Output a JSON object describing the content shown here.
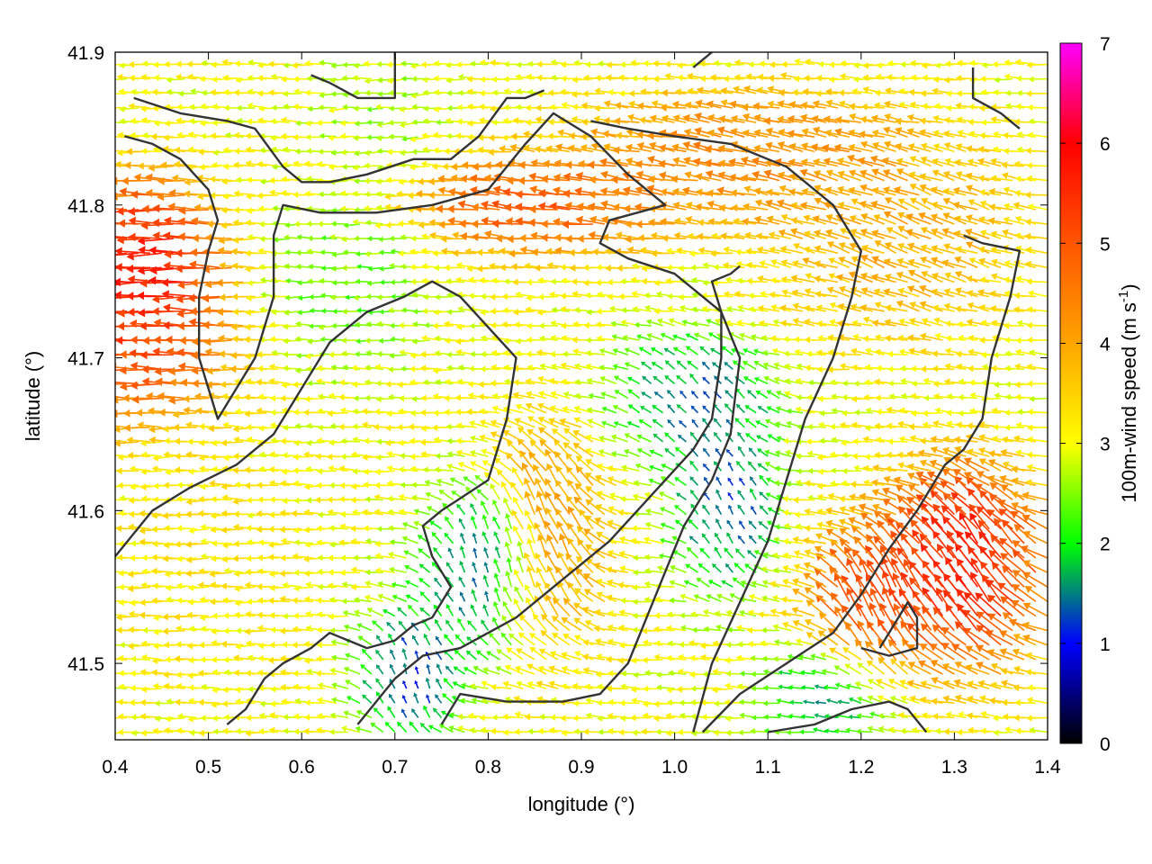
{
  "chart_data": {
    "type": "vector-field",
    "title": "",
    "xlabel": "longitude (°)",
    "ylabel": "latitude (°)",
    "colorbar_label": "100m-wind speed (m s",
    "colorbar_label_sup": "-1",
    "colorbar_label_end": ")",
    "xlim": [
      0.4,
      1.4
    ],
    "ylim": [
      41.45,
      41.9
    ],
    "color_range": [
      0,
      7
    ],
    "x_ticks": [
      {
        "value": 0.4,
        "label": "0.4"
      },
      {
        "value": 0.5,
        "label": "0.5"
      },
      {
        "value": 0.6,
        "label": "0.6"
      },
      {
        "value": 0.7,
        "label": "0.7"
      },
      {
        "value": 0.8,
        "label": "0.8"
      },
      {
        "value": 0.9,
        "label": "0.9"
      },
      {
        "value": 1.0,
        "label": "1.0"
      },
      {
        "value": 1.1,
        "label": "1.1"
      },
      {
        "value": 1.2,
        "label": "1.2"
      },
      {
        "value": 1.3,
        "label": "1.3"
      },
      {
        "value": 1.4,
        "label": "1.4"
      }
    ],
    "y_ticks": [
      {
        "value": 41.5,
        "label": "41.5"
      },
      {
        "value": 41.6,
        "label": "41.6"
      },
      {
        "value": 41.7,
        "label": "41.7"
      },
      {
        "value": 41.8,
        "label": "41.8"
      },
      {
        "value": 41.9,
        "label": "41.9"
      }
    ],
    "colorbar_ticks": [
      {
        "value": 0,
        "label": "0"
      },
      {
        "value": 1,
        "label": "1"
      },
      {
        "value": 2,
        "label": "2"
      },
      {
        "value": 3,
        "label": "3"
      },
      {
        "value": 4,
        "label": "4"
      },
      {
        "value": 5,
        "label": "5"
      },
      {
        "value": 6,
        "label": "6"
      },
      {
        "value": 7,
        "label": "7"
      }
    ],
    "colormap": [
      {
        "v": 0.0,
        "color": "#000000"
      },
      {
        "v": 1.0,
        "color": "#0000ff"
      },
      {
        "v": 2.0,
        "color": "#00ff00"
      },
      {
        "v": 3.0,
        "color": "#ffff00"
      },
      {
        "v": 4.0,
        "color": "#ffa500"
      },
      {
        "v": 5.0,
        "color": "#ff5500"
      },
      {
        "v": 6.0,
        "color": "#ff0000"
      },
      {
        "v": 7.0,
        "color": "#ff00ff"
      }
    ],
    "grid": {
      "x_start": 0.4,
      "x_end": 1.4,
      "x_step": 0.0125,
      "y_start": 41.455,
      "y_end": 41.9,
      "y_step": 0.0095
    },
    "speed_regions": [
      {
        "lon": 0.45,
        "lat": 41.76,
        "radius_lon": 0.07,
        "radius_lat": 0.05,
        "speed": 6.6,
        "dir_deg": 180
      },
      {
        "lon": 0.44,
        "lat": 41.71,
        "radius_lon": 0.09,
        "radius_lat": 0.05,
        "speed": 5.6,
        "dir_deg": 180
      },
      {
        "lon": 0.87,
        "lat": 41.8,
        "radius_lon": 0.12,
        "radius_lat": 0.03,
        "speed": 5.5,
        "dir_deg": 172
      },
      {
        "lon": 1.08,
        "lat": 41.83,
        "radius_lon": 0.16,
        "radius_lat": 0.04,
        "speed": 4.8,
        "dir_deg": 165
      },
      {
        "lon": 1.25,
        "lat": 41.78,
        "radius_lon": 0.12,
        "radius_lat": 0.06,
        "speed": 4.2,
        "dir_deg": 150
      },
      {
        "lon": 0.87,
        "lat": 41.58,
        "radius_lon": 0.06,
        "radius_lat": 0.07,
        "speed": 4.5,
        "dir_deg": 100
      },
      {
        "lon": 1.32,
        "lat": 41.56,
        "radius_lon": 0.08,
        "radius_lat": 0.06,
        "speed": 6.5,
        "dir_deg": 110
      },
      {
        "lon": 1.22,
        "lat": 41.53,
        "radius_lon": 0.06,
        "radius_lat": 0.05,
        "speed": 5.8,
        "dir_deg": 100
      },
      {
        "lon": 0.8,
        "lat": 41.56,
        "radius_lon": 0.06,
        "radius_lat": 0.05,
        "speed": 0.8,
        "dir_deg": 90
      },
      {
        "lon": 0.72,
        "lat": 41.49,
        "radius_lon": 0.05,
        "radius_lat": 0.04,
        "speed": 0.7,
        "dir_deg": 90
      },
      {
        "lon": 1.03,
        "lat": 41.67,
        "radius_lon": 0.08,
        "radius_lat": 0.04,
        "speed": 1.0,
        "dir_deg": 120
      },
      {
        "lon": 1.06,
        "lat": 41.6,
        "radius_lon": 0.05,
        "radius_lat": 0.05,
        "speed": 0.8,
        "dir_deg": 100
      },
      {
        "lon": 1.18,
        "lat": 41.48,
        "radius_lon": 0.07,
        "radius_lat": 0.03,
        "speed": 1.0,
        "dir_deg": 170
      },
      {
        "lon": 0.66,
        "lat": 41.75,
        "radius_lon": 0.08,
        "radius_lat": 0.05,
        "speed": 2.2,
        "dir_deg": 180
      },
      {
        "lon": 0.5,
        "lat": 41.57,
        "radius_lon": 0.1,
        "radius_lat": 0.08,
        "speed": 3.3,
        "dir_deg": 180
      },
      {
        "lon": 0.7,
        "lat": 41.86,
        "radius_lon": 0.06,
        "radius_lat": 0.04,
        "speed": 2.5,
        "dir_deg": 185
      }
    ],
    "background_speed": 3.0,
    "background_dir_deg": 178,
    "contours": [
      [
        [
          0.42,
          41.87
        ],
        [
          0.47,
          41.86
        ],
        [
          0.52,
          41.855
        ],
        [
          0.55,
          41.85
        ],
        [
          0.58,
          41.825
        ],
        [
          0.6,
          41.815
        ],
        [
          0.63,
          41.815
        ],
        [
          0.67,
          41.82
        ],
        [
          0.72,
          41.83
        ],
        [
          0.76,
          41.83
        ],
        [
          0.79,
          41.845
        ],
        [
          0.82,
          41.87
        ],
        [
          0.84,
          41.87
        ],
        [
          0.86,
          41.875
        ]
      ],
      [
        [
          0.41,
          41.845
        ],
        [
          0.44,
          41.84
        ],
        [
          0.47,
          41.83
        ],
        [
          0.5,
          41.81
        ],
        [
          0.51,
          41.79
        ],
        [
          0.5,
          41.77
        ],
        [
          0.49,
          41.74
        ],
        [
          0.49,
          41.7
        ],
        [
          0.51,
          41.66
        ],
        [
          0.55,
          41.7
        ],
        [
          0.57,
          41.74
        ],
        [
          0.57,
          41.78
        ],
        [
          0.58,
          41.8
        ],
        [
          0.62,
          41.795
        ],
        [
          0.68,
          41.795
        ],
        [
          0.74,
          41.8
        ],
        [
          0.8,
          41.81
        ],
        [
          0.84,
          41.84
        ],
        [
          0.87,
          41.86
        ],
        [
          0.91,
          41.845
        ],
        [
          0.95,
          41.82
        ],
        [
          0.99,
          41.8
        ],
        [
          0.96,
          41.795
        ],
        [
          0.93,
          41.79
        ],
        [
          0.92,
          41.775
        ],
        [
          0.95,
          41.765
        ],
        [
          1.0,
          41.755
        ],
        [
          1.05,
          41.73
        ],
        [
          1.07,
          41.7
        ],
        [
          1.06,
          41.65
        ],
        [
          1.04,
          41.62
        ],
        [
          1.01,
          41.59
        ],
        [
          0.99,
          41.56
        ],
        [
          0.97,
          41.53
        ],
        [
          0.95,
          41.5
        ],
        [
          0.92,
          41.48
        ],
        [
          0.88,
          41.475
        ],
        [
          0.82,
          41.475
        ],
        [
          0.77,
          41.48
        ],
        [
          0.75,
          41.46
        ]
      ],
      [
        [
          0.4,
          41.57
        ],
        [
          0.44,
          41.6
        ],
        [
          0.48,
          41.615
        ],
        [
          0.53,
          41.63
        ],
        [
          0.57,
          41.65
        ],
        [
          0.6,
          41.68
        ],
        [
          0.63,
          41.71
        ],
        [
          0.67,
          41.73
        ],
        [
          0.71,
          41.74
        ],
        [
          0.74,
          41.75
        ],
        [
          0.77,
          41.74
        ],
        [
          0.8,
          41.72
        ],
        [
          0.83,
          41.7
        ],
        [
          0.82,
          41.66
        ],
        [
          0.8,
          41.62
        ],
        [
          0.75,
          41.6
        ],
        [
          0.73,
          41.59
        ],
        [
          0.74,
          41.57
        ],
        [
          0.76,
          41.55
        ],
        [
          0.74,
          41.53
        ],
        [
          0.72,
          41.525
        ],
        [
          0.7,
          41.515
        ],
        [
          0.67,
          41.51
        ],
        [
          0.63,
          41.52
        ],
        [
          0.61,
          41.51
        ],
        [
          0.58,
          41.5
        ],
        [
          0.56,
          41.49
        ],
        [
          0.54,
          41.47
        ],
        [
          0.52,
          41.46
        ]
      ],
      [
        [
          0.66,
          41.46
        ],
        [
          0.7,
          41.49
        ],
        [
          0.73,
          41.505
        ],
        [
          0.77,
          41.51
        ],
        [
          0.8,
          41.52
        ],
        [
          0.83,
          41.53
        ],
        [
          0.86,
          41.545
        ],
        [
          0.88,
          41.555
        ],
        [
          0.9,
          41.565
        ],
        [
          0.93,
          41.58
        ],
        [
          0.96,
          41.6
        ],
        [
          0.99,
          41.62
        ],
        [
          1.02,
          41.64
        ],
        [
          1.04,
          41.66
        ],
        [
          1.05,
          41.7
        ],
        [
          1.05,
          41.73
        ],
        [
          1.04,
          41.75
        ],
        [
          1.06,
          41.755
        ],
        [
          1.07,
          41.76
        ]
      ],
      [
        [
          1.02,
          41.455
        ],
        [
          1.04,
          41.5
        ],
        [
          1.07,
          41.54
        ],
        [
          1.1,
          41.58
        ],
        [
          1.12,
          41.62
        ],
        [
          1.14,
          41.66
        ],
        [
          1.17,
          41.7
        ],
        [
          1.19,
          41.74
        ],
        [
          1.2,
          41.77
        ],
        [
          1.17,
          41.8
        ],
        [
          1.12,
          41.825
        ],
        [
          1.06,
          41.84
        ],
        [
          1.0,
          41.845
        ],
        [
          0.95,
          41.85
        ],
        [
          0.91,
          41.855
        ]
      ],
      [
        [
          1.03,
          41.455
        ],
        [
          1.07,
          41.48
        ],
        [
          1.12,
          41.5
        ],
        [
          1.17,
          41.52
        ],
        [
          1.2,
          41.545
        ],
        [
          1.23,
          41.575
        ],
        [
          1.26,
          41.6
        ],
        [
          1.29,
          41.63
        ],
        [
          1.31,
          41.64
        ],
        [
          1.33,
          41.66
        ],
        [
          1.34,
          41.7
        ],
        [
          1.36,
          41.74
        ],
        [
          1.37,
          41.77
        ],
        [
          1.33,
          41.775
        ],
        [
          1.31,
          41.78
        ]
      ],
      [
        [
          1.2,
          41.51
        ],
        [
          1.23,
          41.505
        ],
        [
          1.26,
          41.51
        ],
        [
          1.26,
          41.53
        ],
        [
          1.25,
          41.54
        ],
        [
          1.24,
          41.53
        ],
        [
          1.22,
          41.51
        ]
      ],
      [
        [
          1.1,
          41.455
        ],
        [
          1.15,
          41.46
        ],
        [
          1.19,
          41.47
        ],
        [
          1.23,
          41.475
        ],
        [
          1.25,
          41.47
        ],
        [
          1.27,
          41.455
        ]
      ],
      [
        [
          1.32,
          41.89
        ],
        [
          1.32,
          41.87
        ],
        [
          1.35,
          41.86
        ],
        [
          1.37,
          41.85
        ]
      ],
      [
        [
          0.61,
          41.885
        ],
        [
          0.63,
          41.88
        ],
        [
          0.66,
          41.87
        ],
        [
          0.7,
          41.87
        ],
        [
          0.7,
          41.9
        ]
      ],
      [
        [
          1.02,
          41.89
        ],
        [
          1.04,
          41.9
        ]
      ]
    ]
  }
}
